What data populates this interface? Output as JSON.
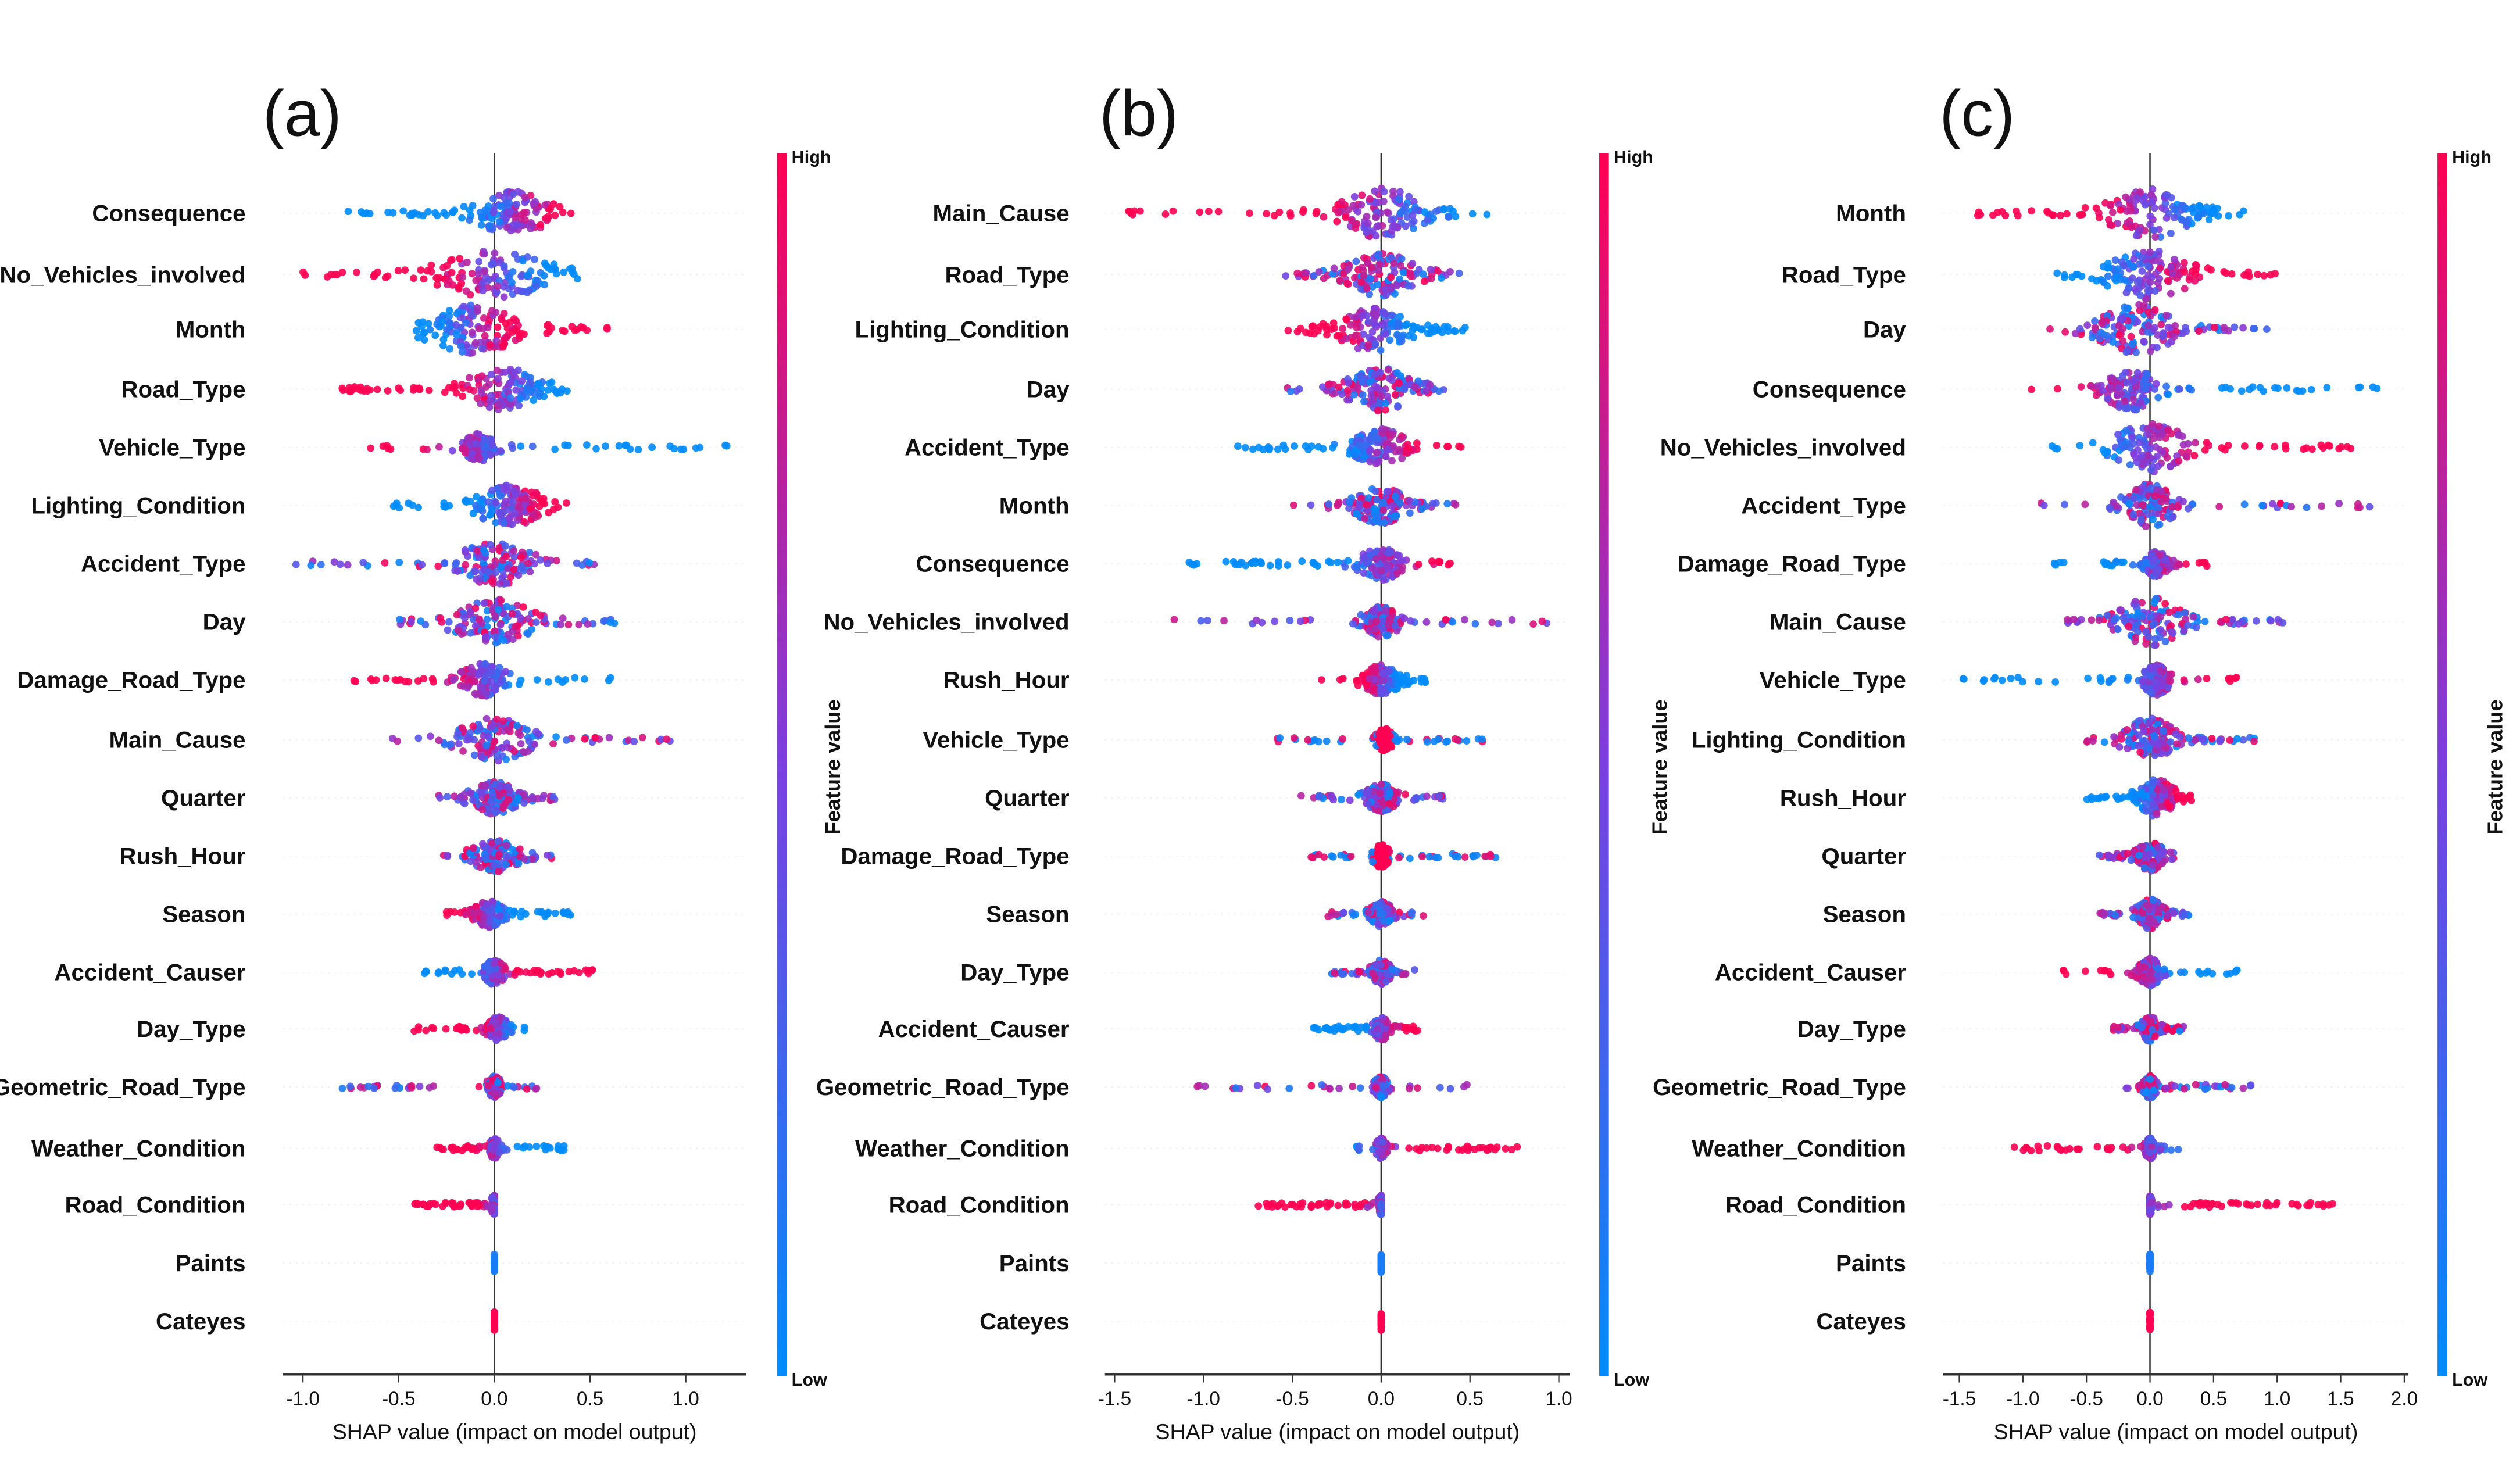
{
  "colors": {
    "high": "#ff0052",
    "mid": "#9b30c8",
    "low": "#008bfb"
  },
  "chart_data": [
    {
      "type": "scatter",
      "title": "(a)",
      "xlabel": "SHAP value (impact on model output)",
      "xticks": [
        -1.0,
        -0.5,
        0.0,
        0.5,
        1.0
      ],
      "xtick_labels": [
        "-1.0",
        "-0.5",
        "0.0",
        "0.5",
        "1.0"
      ],
      "xlim": [
        -1.1,
        1.3
      ],
      "colorbar": {
        "label": "Feature value",
        "high": "High",
        "low": "Low"
      },
      "features": [
        {
          "name": "Consequence",
          "range": [
            -0.8,
            0.4
          ],
          "center": 0.1,
          "spread": 0.2,
          "high": "pos"
        },
        {
          "name": "No_Vehicles_involved",
          "range": [
            -1.0,
            0.5
          ],
          "center": 0.0,
          "spread": 0.3,
          "high": "neg"
        },
        {
          "name": "Month",
          "range": [
            -0.45,
            0.6
          ],
          "center": -0.1,
          "spread": 0.25,
          "high": "pos"
        },
        {
          "name": "Road_Type",
          "range": [
            -0.8,
            0.38
          ],
          "center": 0.05,
          "spread": 0.2,
          "high": "neg"
        },
        {
          "name": "Vehicle_Type",
          "range": [
            -0.65,
            1.22
          ],
          "center": -0.08,
          "spread": 0.08,
          "high": "neg"
        },
        {
          "name": "Lighting_Condition",
          "range": [
            -0.55,
            0.38
          ],
          "center": 0.08,
          "spread": 0.18,
          "high": "pos"
        },
        {
          "name": "Accident_Type",
          "range": [
            -1.05,
            0.7
          ],
          "center": 0.0,
          "spread": 0.2,
          "high": "mixed"
        },
        {
          "name": "Day",
          "range": [
            -0.5,
            0.65
          ],
          "center": 0.0,
          "spread": 0.22,
          "high": "mixed"
        },
        {
          "name": "Damage_Road_Type",
          "range": [
            -0.8,
            0.62
          ],
          "center": -0.05,
          "spread": 0.12,
          "high": "neg"
        },
        {
          "name": "Main_Cause",
          "range": [
            -0.55,
            0.93
          ],
          "center": 0.0,
          "spread": 0.2,
          "high": "mixed"
        },
        {
          "name": "Quarter",
          "range": [
            -0.3,
            0.32
          ],
          "center": 0.0,
          "spread": 0.12,
          "high": "mixed"
        },
        {
          "name": "Rush_Hour",
          "range": [
            -0.27,
            0.3
          ],
          "center": 0.0,
          "spread": 0.12,
          "high": "mixed"
        },
        {
          "name": "Season",
          "range": [
            -0.25,
            0.4
          ],
          "center": -0.03,
          "spread": 0.07,
          "high": "neg"
        },
        {
          "name": "Accident_Causer",
          "range": [
            -0.37,
            0.52
          ],
          "center": 0.0,
          "spread": 0.05,
          "high": "pos"
        },
        {
          "name": "Day_Type",
          "range": [
            -0.42,
            0.17
          ],
          "center": 0.02,
          "spread": 0.05,
          "high": "neg"
        },
        {
          "name": "Geometric_Road_Type",
          "range": [
            -0.8,
            0.37
          ],
          "center": 0.0,
          "spread": 0.03,
          "high": "mixed"
        },
        {
          "name": "Weather_Condition",
          "range": [
            -0.3,
            0.38
          ],
          "center": 0.0,
          "spread": 0.02,
          "high": "neg"
        },
        {
          "name": "Road_Condition",
          "range": [
            -0.42,
            0.0
          ],
          "center": 0.0,
          "spread": 0.01,
          "high": "neg"
        },
        {
          "name": "Paints",
          "range": [
            0.0,
            0.0
          ],
          "center": 0.0,
          "spread": 0.005,
          "high": "low-only"
        },
        {
          "name": "Cateyes",
          "range": [
            0.0,
            0.0
          ],
          "center": 0.0,
          "spread": 0.005,
          "high": "high-only"
        }
      ]
    },
    {
      "type": "scatter",
      "title": "(b)",
      "xlabel": "SHAP value (impact on model output)",
      "xticks": [
        -1.5,
        -1.0,
        -0.5,
        0.0,
        0.5,
        1.0
      ],
      "xtick_labels": [
        "-1.5",
        "-1.0",
        "-0.5",
        "0.0",
        "0.5",
        "1.0"
      ],
      "xlim": [
        -1.55,
        1.05
      ],
      "colorbar": {
        "label": "Feature value",
        "high": "High",
        "low": "Low"
      },
      "features": [
        {
          "name": "Main_Cause",
          "range": [
            -1.45,
            0.7
          ],
          "center": 0.0,
          "spread": 0.25,
          "high": "neg"
        },
        {
          "name": "Road_Type",
          "range": [
            -0.55,
            0.45
          ],
          "center": 0.0,
          "spread": 0.2,
          "high": "mixed"
        },
        {
          "name": "Lighting_Condition",
          "range": [
            -0.55,
            0.48
          ],
          "center": -0.05,
          "spread": 0.2,
          "high": "neg"
        },
        {
          "name": "Day",
          "range": [
            -0.55,
            0.38
          ],
          "center": 0.0,
          "spread": 0.2,
          "high": "mixed"
        },
        {
          "name": "Accident_Type",
          "range": [
            -0.82,
            0.45
          ],
          "center": 0.0,
          "spread": 0.15,
          "high": "pos"
        },
        {
          "name": "Month",
          "range": [
            -0.5,
            0.45
          ],
          "center": 0.0,
          "spread": 0.15,
          "high": "mixed"
        },
        {
          "name": "Consequence",
          "range": [
            -1.1,
            0.45
          ],
          "center": 0.0,
          "spread": 0.12,
          "high": "pos"
        },
        {
          "name": "No_Vehicles_involved",
          "range": [
            -1.2,
            0.95
          ],
          "center": 0.0,
          "spread": 0.1,
          "high": "mixed"
        },
        {
          "name": "Rush_Hour",
          "range": [
            -0.35,
            0.25
          ],
          "center": 0.0,
          "spread": 0.1,
          "high": "neg"
        },
        {
          "name": "Vehicle_Type",
          "range": [
            -0.65,
            0.6
          ],
          "center": 0.02,
          "spread": 0.04,
          "high": "center"
        },
        {
          "name": "Quarter",
          "range": [
            -0.45,
            0.35
          ],
          "center": 0.0,
          "spread": 0.08,
          "high": "mixed"
        },
        {
          "name": "Damage_Road_Type",
          "range": [
            -0.4,
            0.65
          ],
          "center": 0.0,
          "spread": 0.04,
          "high": "center"
        },
        {
          "name": "Season",
          "range": [
            -0.3,
            0.25
          ],
          "center": 0.0,
          "spread": 0.06,
          "high": "mixed"
        },
        {
          "name": "Day_Type",
          "range": [
            -0.28,
            0.2
          ],
          "center": 0.0,
          "spread": 0.05,
          "high": "mixed"
        },
        {
          "name": "Accident_Causer",
          "range": [
            -0.38,
            0.22
          ],
          "center": 0.0,
          "spread": 0.04,
          "high": "pos"
        },
        {
          "name": "Geometric_Road_Type",
          "range": [
            -1.08,
            0.5
          ],
          "center": 0.0,
          "spread": 0.03,
          "high": "mixed"
        },
        {
          "name": "Weather_Condition",
          "range": [
            -0.15,
            0.78
          ],
          "center": 0.0,
          "spread": 0.02,
          "high": "pos"
        },
        {
          "name": "Road_Condition",
          "range": [
            -0.7,
            0.0
          ],
          "center": 0.0,
          "spread": 0.01,
          "high": "neg"
        },
        {
          "name": "Paints",
          "range": [
            0.0,
            0.0
          ],
          "center": 0.0,
          "spread": 0.005,
          "high": "low-only"
        },
        {
          "name": "Cateyes",
          "range": [
            0.0,
            0.0
          ],
          "center": 0.0,
          "spread": 0.005,
          "high": "high-only"
        }
      ]
    },
    {
      "type": "scatter",
      "title": "(c)",
      "xlabel": "SHAP value (impact on model output)",
      "xticks": [
        -1.5,
        -1.0,
        -0.5,
        0.0,
        0.5,
        1.0,
        1.5,
        2.0
      ],
      "xtick_labels": [
        "-1.5",
        "-1.0",
        "-0.5",
        "0.0",
        "0.5",
        "1.0",
        "1.5",
        "2.0"
      ],
      "xlim": [
        -1.65,
        2.05
      ],
      "colorbar": {
        "label": "Feature value",
        "high": "High",
        "low": "Low"
      },
      "features": [
        {
          "name": "Month",
          "range": [
            -1.4,
            0.75
          ],
          "center": 0.0,
          "spread": 0.35,
          "high": "neg"
        },
        {
          "name": "Road_Type",
          "range": [
            -0.75,
            1.0
          ],
          "center": 0.0,
          "spread": 0.35,
          "high": "pos"
        },
        {
          "name": "Day",
          "range": [
            -0.8,
            0.92
          ],
          "center": -0.1,
          "spread": 0.3,
          "high": "mixed"
        },
        {
          "name": "Consequence",
          "range": [
            -1.05,
            1.88
          ],
          "center": -0.15,
          "spread": 0.2,
          "high": "neg"
        },
        {
          "name": "No_Vehicles_involved",
          "range": [
            -0.8,
            1.6
          ],
          "center": 0.0,
          "spread": 0.3,
          "high": "pos"
        },
        {
          "name": "Accident_Type",
          "range": [
            -0.9,
            1.75
          ],
          "center": 0.0,
          "spread": 0.2,
          "high": "mixed"
        },
        {
          "name": "Damage_Road_Type",
          "range": [
            -1.05,
            0.45
          ],
          "center": 0.05,
          "spread": 0.08,
          "high": "pos"
        },
        {
          "name": "Main_Cause",
          "range": [
            -0.65,
            1.05
          ],
          "center": 0.0,
          "spread": 0.25,
          "high": "mixed"
        },
        {
          "name": "Vehicle_Type",
          "range": [
            -1.5,
            0.7
          ],
          "center": 0.05,
          "spread": 0.1,
          "high": "pos"
        },
        {
          "name": "Lighting_Condition",
          "range": [
            -0.5,
            0.85
          ],
          "center": 0.0,
          "spread": 0.2,
          "high": "mixed"
        },
        {
          "name": "Rush_Hour",
          "range": [
            -0.5,
            0.45
          ],
          "center": 0.05,
          "spread": 0.15,
          "high": "pos"
        },
        {
          "name": "Quarter",
          "range": [
            -0.4,
            0.2
          ],
          "center": 0.0,
          "spread": 0.1,
          "high": "mixed"
        },
        {
          "name": "Season",
          "range": [
            -0.4,
            0.35
          ],
          "center": 0.0,
          "spread": 0.1,
          "high": "mixed"
        },
        {
          "name": "Accident_Causer",
          "range": [
            -0.7,
            0.7
          ],
          "center": 0.0,
          "spread": 0.08,
          "high": "neg"
        },
        {
          "name": "Day_Type",
          "range": [
            -0.3,
            0.3
          ],
          "center": 0.0,
          "spread": 0.06,
          "high": "mixed"
        },
        {
          "name": "Geometric_Road_Type",
          "range": [
            -0.2,
            0.8
          ],
          "center": 0.0,
          "spread": 0.04,
          "high": "mixed"
        },
        {
          "name": "Weather_Condition",
          "range": [
            -1.1,
            0.25
          ],
          "center": 0.0,
          "spread": 0.03,
          "high": "neg"
        },
        {
          "name": "Road_Condition",
          "range": [
            0.0,
            1.45
          ],
          "center": 0.0,
          "spread": 0.01,
          "high": "pos"
        },
        {
          "name": "Paints",
          "range": [
            0.0,
            0.0
          ],
          "center": 0.0,
          "spread": 0.005,
          "high": "low-only"
        },
        {
          "name": "Cateyes",
          "range": [
            0.0,
            0.0
          ],
          "center": 0.0,
          "spread": 0.005,
          "high": "high-only"
        }
      ]
    }
  ]
}
